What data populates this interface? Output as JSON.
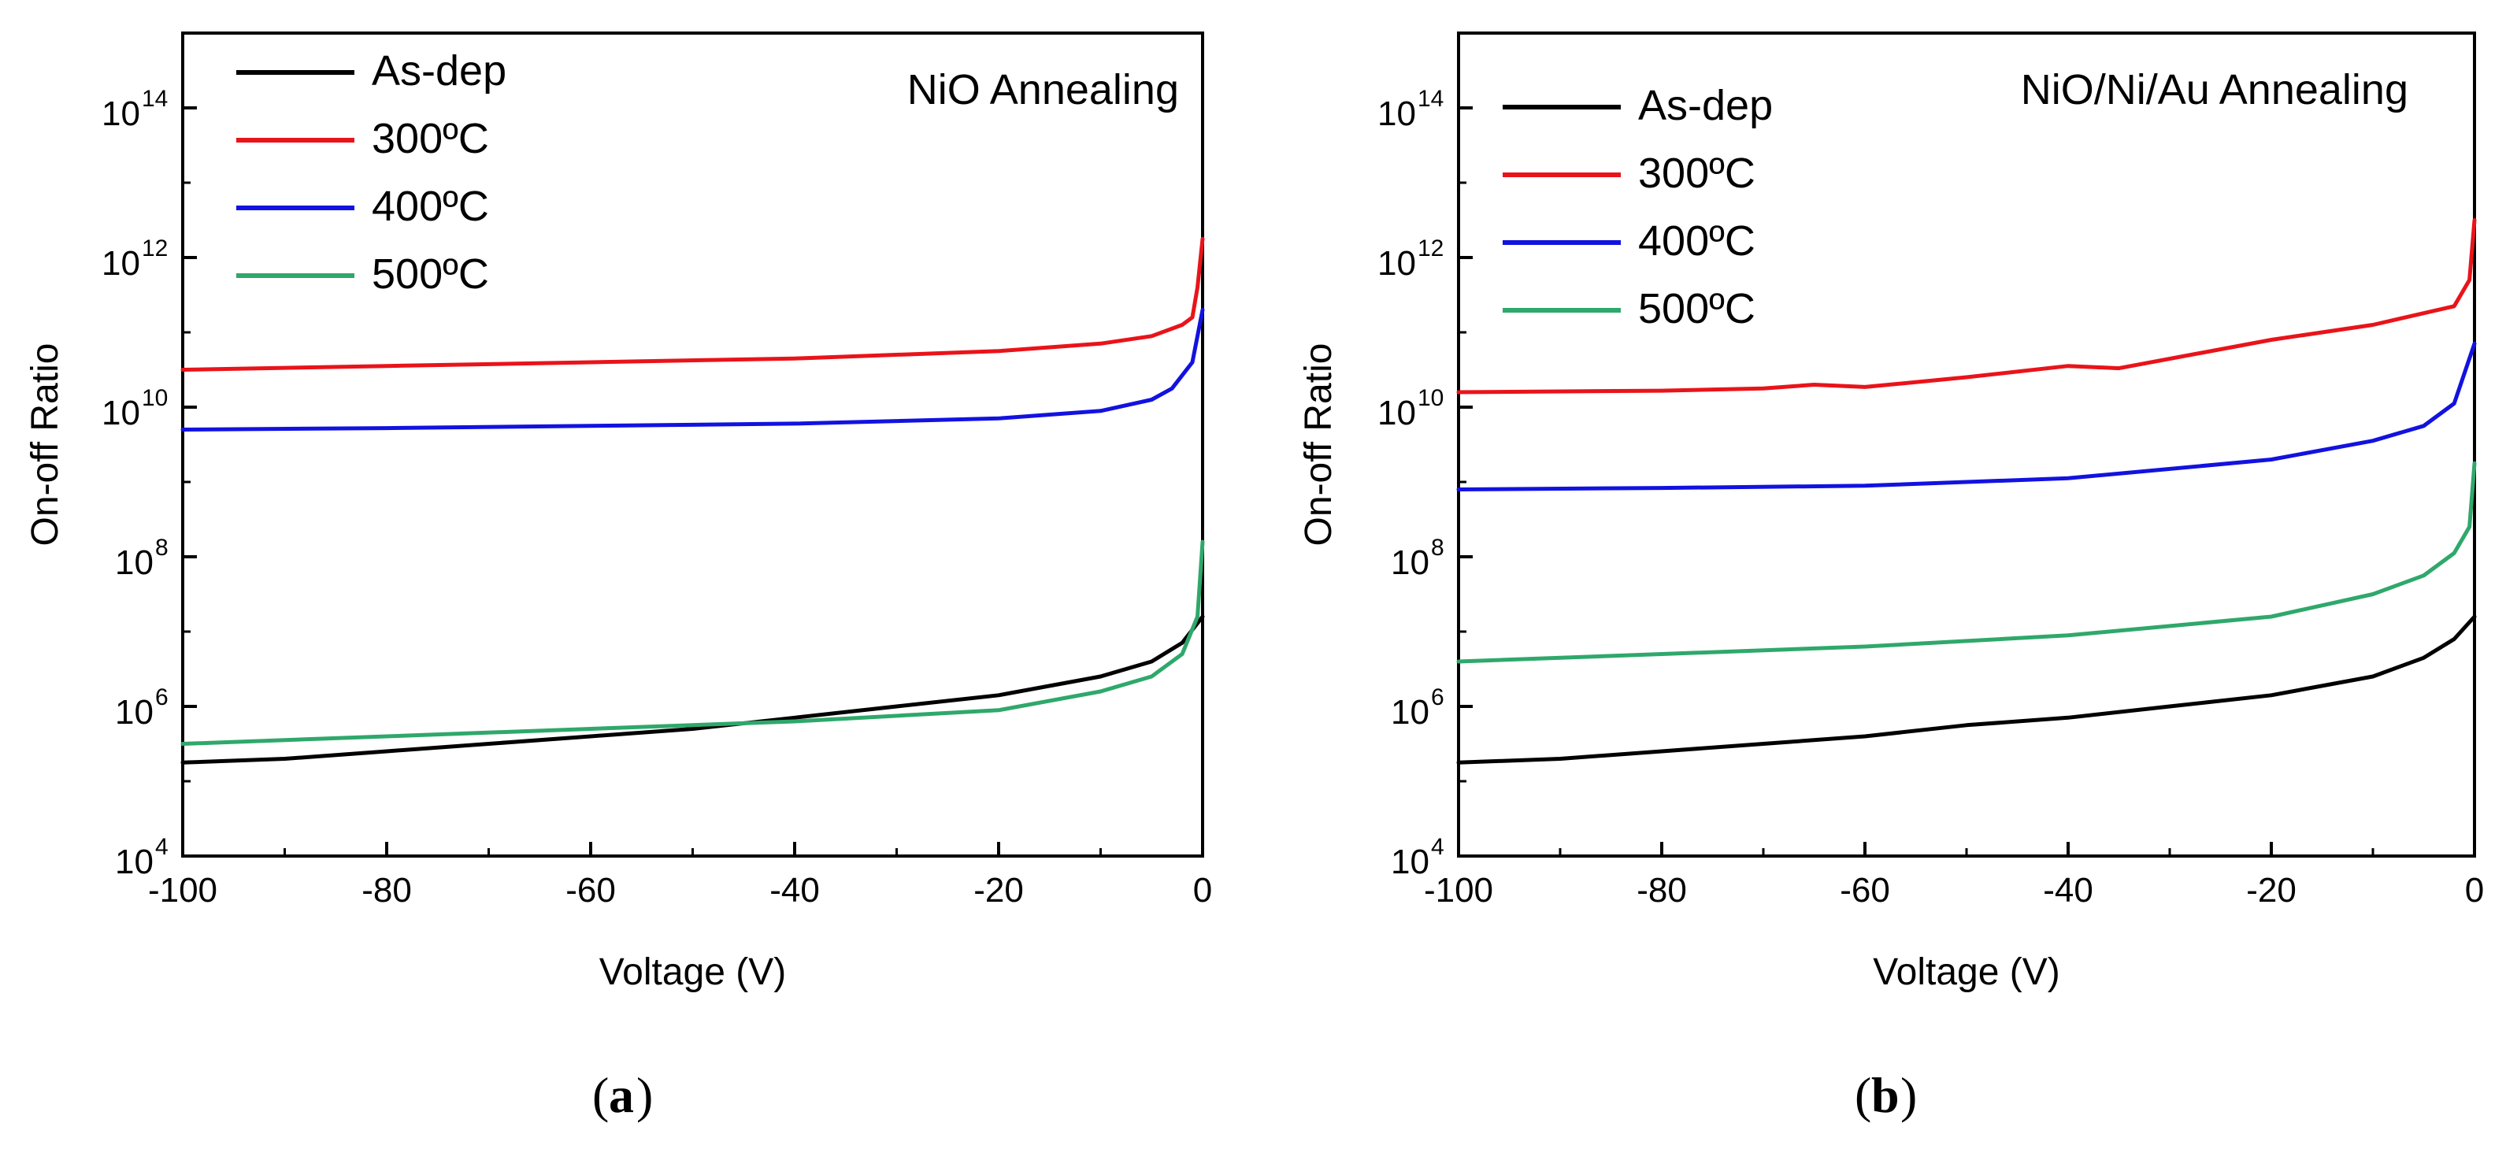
{
  "chart_data": [
    {
      "type": "line",
      "panel_label": "a",
      "title": "NiO Annealing",
      "xlabel": "Voltage (V)",
      "ylabel": "On-off Ratio",
      "xlim": [
        -100,
        0
      ],
      "ylim_log10": [
        4,
        15
      ],
      "yscale": "log",
      "xticks": [
        -100,
        -80,
        -60,
        -40,
        -20,
        0
      ],
      "xtick_labels": [
        "-100",
        "-80",
        "-60",
        "-40",
        "-20",
        "0"
      ],
      "yticks_exponent": [
        4,
        6,
        8,
        10,
        12,
        14
      ],
      "ytick_base": "10",
      "ytick_exponents": [
        "4",
        "6",
        "8",
        "10",
        "12",
        "14"
      ],
      "legend_position": "top-left",
      "series": [
        {
          "name": "As-dep",
          "color": "#000000",
          "x": [
            -100,
            -90,
            -80,
            -70,
            -60,
            -50,
            -40,
            -30,
            -20,
            -10,
            -5,
            -2,
            0
          ],
          "log10_y": [
            5.25,
            5.3,
            5.4,
            5.5,
            5.6,
            5.7,
            5.85,
            6.0,
            6.15,
            6.4,
            6.6,
            6.85,
            7.2
          ]
        },
        {
          "name": "300ºC",
          "color": "#e8141a",
          "x": [
            -100,
            -80,
            -60,
            -40,
            -20,
            -10,
            -5,
            -2,
            -1,
            -0.5,
            0
          ],
          "log10_y": [
            10.5,
            10.55,
            10.6,
            10.65,
            10.75,
            10.85,
            10.95,
            11.1,
            11.2,
            11.6,
            12.25
          ]
        },
        {
          "name": "400ºC",
          "color": "#1212e0",
          "x": [
            -100,
            -80,
            -60,
            -40,
            -20,
            -10,
            -5,
            -3,
            -1,
            0
          ],
          "log10_y": [
            9.7,
            9.72,
            9.75,
            9.78,
            9.85,
            9.95,
            10.1,
            10.25,
            10.6,
            11.3
          ]
        },
        {
          "name": "500ºC",
          "color": "#2fa86b",
          "x": [
            -100,
            -80,
            -60,
            -40,
            -20,
            -10,
            -5,
            -2,
            -0.5,
            0
          ],
          "log10_y": [
            5.5,
            5.6,
            5.7,
            5.8,
            5.95,
            6.2,
            6.4,
            6.7,
            7.2,
            8.2
          ]
        }
      ]
    },
    {
      "type": "line",
      "panel_label": "b",
      "title": "NiO/Ni/Au Annealing",
      "xlabel": "Voltage (V)",
      "ylabel": "On-off Ratio",
      "xlim": [
        -100,
        0
      ],
      "ylim_log10": [
        4,
        15
      ],
      "yscale": "log",
      "xticks": [
        -100,
        -80,
        -60,
        -40,
        -20,
        0
      ],
      "xtick_labels": [
        "-100",
        "-80",
        "-60",
        "-40",
        "-20",
        "0"
      ],
      "yticks_exponent": [
        4,
        6,
        8,
        10,
        12,
        14
      ],
      "ytick_base": "10",
      "ytick_exponents": [
        "4",
        "6",
        "8",
        "10",
        "12",
        "14"
      ],
      "legend_position": "top-left",
      "series": [
        {
          "name": "As-dep",
          "color": "#000000",
          "x": [
            -100,
            -90,
            -80,
            -70,
            -60,
            -50,
            -40,
            -30,
            -20,
            -10,
            -5,
            -2,
            0
          ],
          "log10_y": [
            5.25,
            5.3,
            5.4,
            5.5,
            5.6,
            5.75,
            5.85,
            6.0,
            6.15,
            6.4,
            6.65,
            6.9,
            7.2
          ]
        },
        {
          "name": "300ºC",
          "color": "#e8141a",
          "x": [
            -100,
            -80,
            -70,
            -65,
            -60,
            -50,
            -40,
            -35,
            -20,
            -10,
            -2,
            -0.5,
            0
          ],
          "log10_y": [
            10.2,
            10.22,
            10.25,
            10.3,
            10.27,
            10.4,
            10.55,
            10.52,
            10.9,
            11.1,
            11.35,
            11.7,
            12.5
          ]
        },
        {
          "name": "400ºC",
          "color": "#1212e0",
          "x": [
            -100,
            -80,
            -60,
            -40,
            -20,
            -10,
            -5,
            -2,
            0
          ],
          "log10_y": [
            8.9,
            8.92,
            8.95,
            9.05,
            9.3,
            9.55,
            9.75,
            10.05,
            10.85
          ]
        },
        {
          "name": "500ºC",
          "color": "#2fa86b",
          "x": [
            -100,
            -80,
            -60,
            -40,
            -20,
            -10,
            -5,
            -2,
            -0.5,
            0
          ],
          "log10_y": [
            6.6,
            6.7,
            6.8,
            6.95,
            7.2,
            7.5,
            7.75,
            8.05,
            8.4,
            9.25
          ]
        }
      ]
    }
  ],
  "captions": {
    "a": "a",
    "b": "b"
  }
}
